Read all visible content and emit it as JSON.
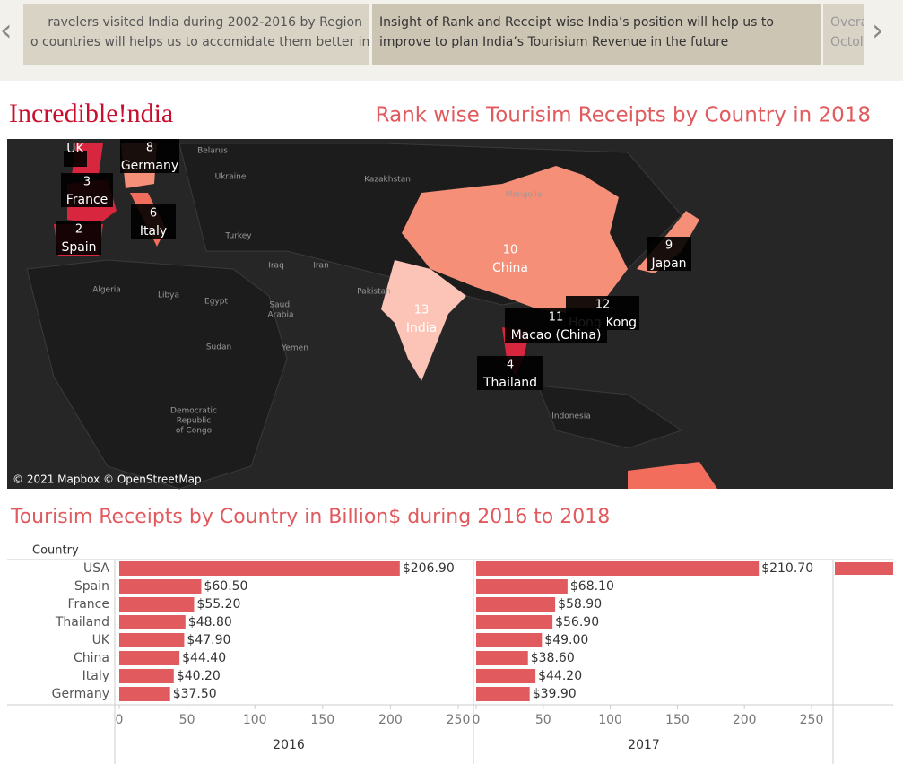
{
  "story_points": [
    {
      "lines": [
        "ravelers visited India during 2002-2016 by Region",
        "o countries will helps us to accomidate them better in"
      ]
    },
    {
      "lines": [
        "Insight of Rank and Receipt wise India’s position will help us to",
        "improve to plan India’s Tourisium Revenue in the future"
      ]
    },
    {
      "lines": [
        "Overa",
        "Octol"
      ]
    }
  ],
  "logo": "Incredible!ndia",
  "map": {
    "title": "Rank wise Tourisim Receipts by Country in 2018",
    "attribution": "© 2021 Mapbox © OpenStreetMap",
    "labels": [
      {
        "rank": null,
        "name": "UK"
      },
      {
        "rank": 8,
        "name": "Germany"
      },
      {
        "rank": 3,
        "name": "France"
      },
      {
        "rank": 6,
        "name": "Italy"
      },
      {
        "rank": 2,
        "name": "Spain"
      },
      {
        "rank": 10,
        "name": "China"
      },
      {
        "rank": 9,
        "name": "Japan"
      },
      {
        "rank": 13,
        "name": "India"
      },
      {
        "rank": 12,
        "name": "Hong Kong"
      },
      {
        "rank": 11,
        "name": "Macao (China)"
      },
      {
        "rank": 4,
        "name": "Thailand"
      }
    ],
    "places": [
      [
        "Belarus"
      ],
      [
        "Ukraine"
      ],
      [
        "Kazakhstan"
      ],
      [
        "Mongolia"
      ],
      [
        "Turkey"
      ],
      [
        "Iraq"
      ],
      [
        "Iran"
      ],
      [
        "Pakistan"
      ],
      [
        "Algeria"
      ],
      [
        "Libya"
      ],
      [
        "Egypt"
      ],
      [
        "Saudi",
        "Arabia"
      ],
      [
        "Yemen"
      ],
      [
        "Sudan"
      ],
      [
        "Democratic",
        "Republic",
        "of Congo"
      ],
      [
        "Indonesia"
      ]
    ]
  },
  "chart_data": {
    "type": "bar",
    "title": "Tourisim Receipts by Country in Billion$  during 2016 to 2018",
    "category_label": "Country",
    "categories": [
      "USA",
      "Spain",
      "France",
      "Thailand",
      "UK",
      "China",
      "Italy",
      "Germany"
    ],
    "color": "#e05a5e",
    "xlim": [
      0,
      250
    ],
    "xticks": [
      0,
      50,
      100,
      150,
      200,
      250
    ],
    "series": [
      {
        "name": "2016",
        "values": [
          206.9,
          60.5,
          55.2,
          48.8,
          47.9,
          44.4,
          40.2,
          37.5
        ],
        "value_labels": [
          "$206.90",
          "$60.50",
          "$55.20",
          "$48.80",
          "$47.90",
          "$44.40",
          "$40.20",
          "$37.50"
        ]
      },
      {
        "name": "2017",
        "values": [
          210.7,
          68.1,
          58.9,
          56.9,
          49.0,
          38.6,
          44.2,
          39.9
        ],
        "value_labels": [
          "$210.70",
          "$68.10",
          "$58.90",
          "$56.90",
          "$49.00",
          "$38.60",
          "$44.20",
          "$39.90"
        ]
      }
    ]
  }
}
